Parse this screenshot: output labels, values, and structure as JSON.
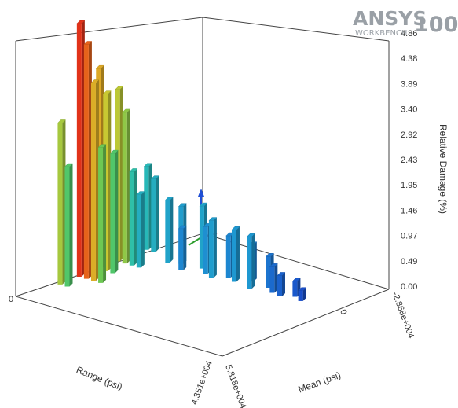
{
  "logo": {
    "brand": "ANSYS",
    "version": "100",
    "product": "WORKBENCH"
  },
  "chart_data": {
    "type": "bar3d",
    "zlabel": "Relative Damage (%)",
    "z_ticks": [
      "4.86",
      "4.38",
      "3.89",
      "3.40",
      "2.92",
      "2.43",
      "1.95",
      "1.46",
      "0.97",
      "0.49",
      "0.00"
    ],
    "zlim": [
      0,
      4.86
    ],
    "range_axis": {
      "label": "Range (psi)",
      "min_label": "0",
      "max_label": "4.351e+004",
      "max": 43510
    },
    "mean_axis": {
      "label": "Mean (psi)",
      "min_label": "-2.868e+004",
      "mid_label": "0",
      "max_label": "5.818e+004",
      "min": -28680,
      "max": 58180
    },
    "bars": [
      {
        "range": 1500,
        "mean": 30000,
        "value": 4.86
      },
      {
        "range": 3000,
        "mean": 30000,
        "value": 4.5
      },
      {
        "range": 4500,
        "mean": 30000,
        "value": 3.8
      },
      {
        "range": 6000,
        "mean": 30000,
        "value": 2.6
      },
      {
        "range": 1500,
        "mean": 20000,
        "value": 3.85
      },
      {
        "range": 3000,
        "mean": 20000,
        "value": 3.4
      },
      {
        "range": 4500,
        "mean": 20000,
        "value": 2.3
      },
      {
        "range": 1500,
        "mean": 10000,
        "value": 3.3
      },
      {
        "range": 3000,
        "mean": 10000,
        "value": 2.9
      },
      {
        "range": 4500,
        "mean": 10000,
        "value": 1.8
      },
      {
        "range": 6000,
        "mean": 10000,
        "value": 1.4
      },
      {
        "range": 1500,
        "mean": 40000,
        "value": 3.1
      },
      {
        "range": 3000,
        "mean": 40000,
        "value": 2.3
      },
      {
        "range": 1500,
        "mean": -5000,
        "value": 1.6
      },
      {
        "range": 3000,
        "mean": -5000,
        "value": 1.4
      },
      {
        "range": 8000,
        "mean": 0,
        "value": 1.2
      },
      {
        "range": 10000,
        "mean": -2000,
        "value": 1.1
      },
      {
        "range": 12000,
        "mean": 3000,
        "value": 0.8
      },
      {
        "range": 14000,
        "mean": -3000,
        "value": 1.2
      },
      {
        "range": 16000,
        "mean": 0,
        "value": 0.9
      },
      {
        "range": 18000,
        "mean": 2000,
        "value": 1.1
      },
      {
        "range": 20000,
        "mean": -2000,
        "value": 0.8
      },
      {
        "range": 22000,
        "mean": 0,
        "value": 1.0
      },
      {
        "range": 24000,
        "mean": -4000,
        "value": 0.7
      },
      {
        "range": 26000,
        "mean": 2000,
        "value": 1.0
      },
      {
        "range": 28000,
        "mean": -3000,
        "value": 0.6
      },
      {
        "range": 30000,
        "mean": 0,
        "value": 0.5
      },
      {
        "range": 32000,
        "mean": 1000,
        "value": 0.4
      },
      {
        "range": 34000,
        "mean": -2000,
        "value": 0.3
      },
      {
        "range": 36000,
        "mean": 0,
        "value": 0.2
      }
    ]
  }
}
